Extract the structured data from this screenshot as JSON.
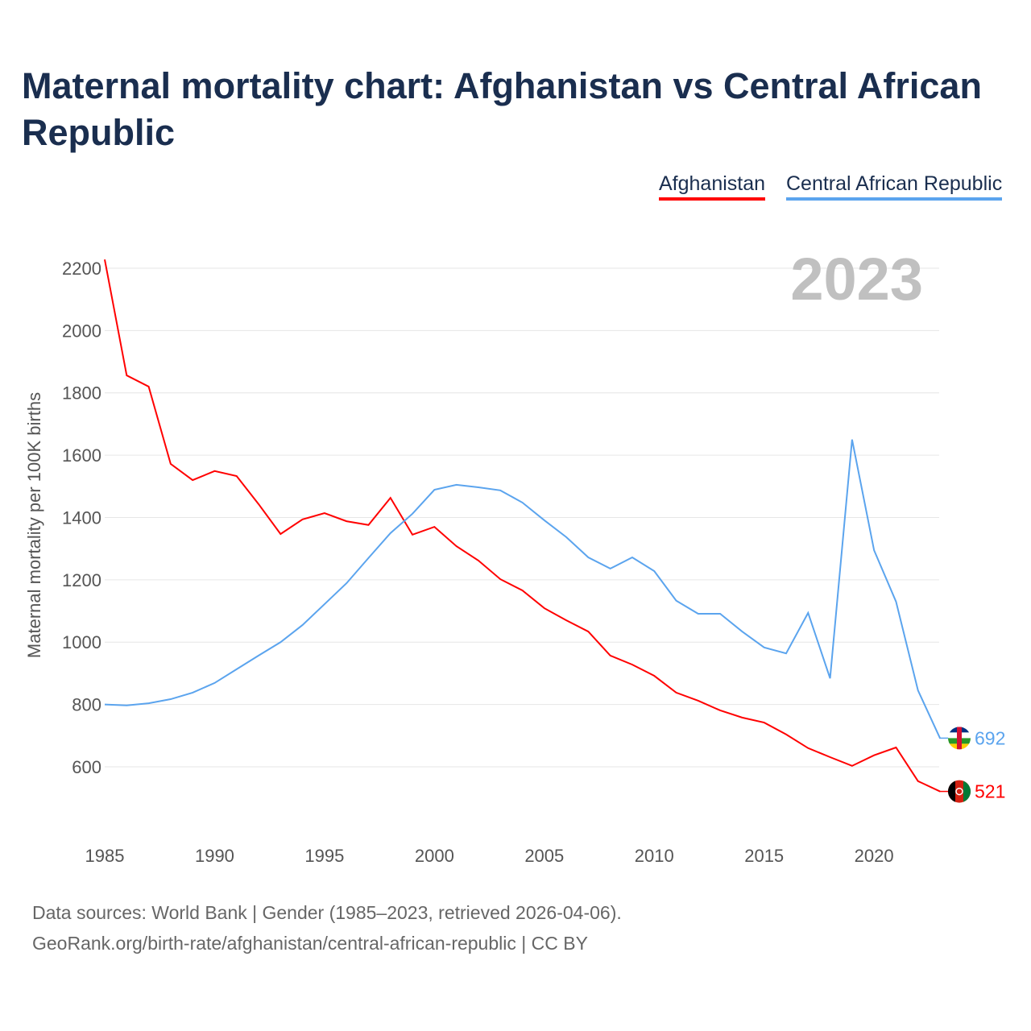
{
  "chart_data": {
    "type": "line",
    "title": "Maternal mortality chart: Afghanistan vs Central African Republic",
    "ylabel": "Maternal mortality per 100K births",
    "xlabel": "",
    "ylim": [
      400,
      2250
    ],
    "xlim": [
      1985,
      2023
    ],
    "yticks": [
      600,
      800,
      1000,
      1200,
      1400,
      1600,
      1800,
      2000,
      2200
    ],
    "xticks": [
      1985,
      1990,
      1995,
      2000,
      2005,
      2010,
      2015,
      2020
    ],
    "grid": true,
    "legend_position": "top-right",
    "year_label": "2023",
    "x": [
      1985,
      1986,
      1987,
      1988,
      1989,
      1990,
      1991,
      1992,
      1993,
      1994,
      1995,
      1996,
      1997,
      1998,
      1999,
      2000,
      2001,
      2002,
      2003,
      2004,
      2005,
      2006,
      2007,
      2008,
      2009,
      2010,
      2011,
      2012,
      2013,
      2014,
      2015,
      2016,
      2017,
      2018,
      2019,
      2020,
      2021,
      2022,
      2023
    ],
    "series": [
      {
        "name": "Afghanistan",
        "color": "#ff0000",
        "end_label": "521",
        "values": [
          2228,
          1856,
          1820,
          1572,
          1520,
          1549,
          1533,
          1443,
          1347,
          1394,
          1414,
          1388,
          1376,
          1463,
          1345,
          1370,
          1308,
          1262,
          1202,
          1166,
          1109,
          1070,
          1034,
          957,
          928,
          892,
          838,
          812,
          781,
          758,
          742,
          704,
          660,
          631,
          603,
          637,
          662,
          554,
          521
        ]
      },
      {
        "name": "Central African Republic",
        "color": "#5ba4ee",
        "end_label": "692",
        "values": [
          800,
          797,
          804,
          817,
          838,
          869,
          913,
          957,
          1000,
          1055,
          1122,
          1189,
          1270,
          1350,
          1412,
          1489,
          1505,
          1497,
          1487,
          1448,
          1391,
          1337,
          1272,
          1236,
          1272,
          1228,
          1133,
          1091,
          1091,
          1034,
          983,
          964,
          1094,
          884,
          1650,
          1295,
          1130,
          845,
          692
        ]
      }
    ]
  },
  "footer": {
    "line1": "Data sources: World Bank | Gender (1985–2023, retrieved 2026-04-06).",
    "line2": "GeoRank.org/birth-rate/afghanistan/central-african-republic | CC BY"
  }
}
